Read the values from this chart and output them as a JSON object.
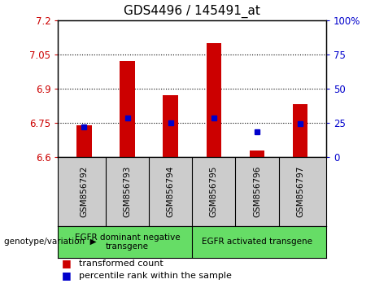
{
  "title": "GDS4496 / 145491_at",
  "samples": [
    "GSM856792",
    "GSM856793",
    "GSM856794",
    "GSM856795",
    "GSM856796",
    "GSM856797"
  ],
  "red_bar_values": [
    6.74,
    7.02,
    6.87,
    7.1,
    6.63,
    6.83
  ],
  "blue_square_values": [
    6.73,
    6.77,
    6.75,
    6.77,
    6.71,
    6.745
  ],
  "ylim": [
    6.6,
    7.2
  ],
  "yticks": [
    6.6,
    6.75,
    6.9,
    7.05,
    7.2
  ],
  "right_yticks_labels": [
    "0",
    "25",
    "50",
    "75",
    "100%"
  ],
  "bar_color": "#cc0000",
  "blue_color": "#0000cc",
  "bg_color": "#ffffff",
  "group1_label": "EGFR dominant negative\ntransgene",
  "group2_label": "EGFR activated transgene",
  "group1_indices": [
    0,
    1,
    2
  ],
  "group2_indices": [
    3,
    4,
    5
  ],
  "group_bg_color": "#66dd66",
  "tick_bg_color": "#cccccc",
  "legend_red_label": "transformed count",
  "legend_blue_label": "percentile rank within the sample",
  "bar_width": 0.35,
  "title_fontsize": 11,
  "tick_fontsize": 8.5,
  "sample_fontsize": 7.5,
  "group_fontsize": 7.5,
  "legend_fontsize": 8
}
